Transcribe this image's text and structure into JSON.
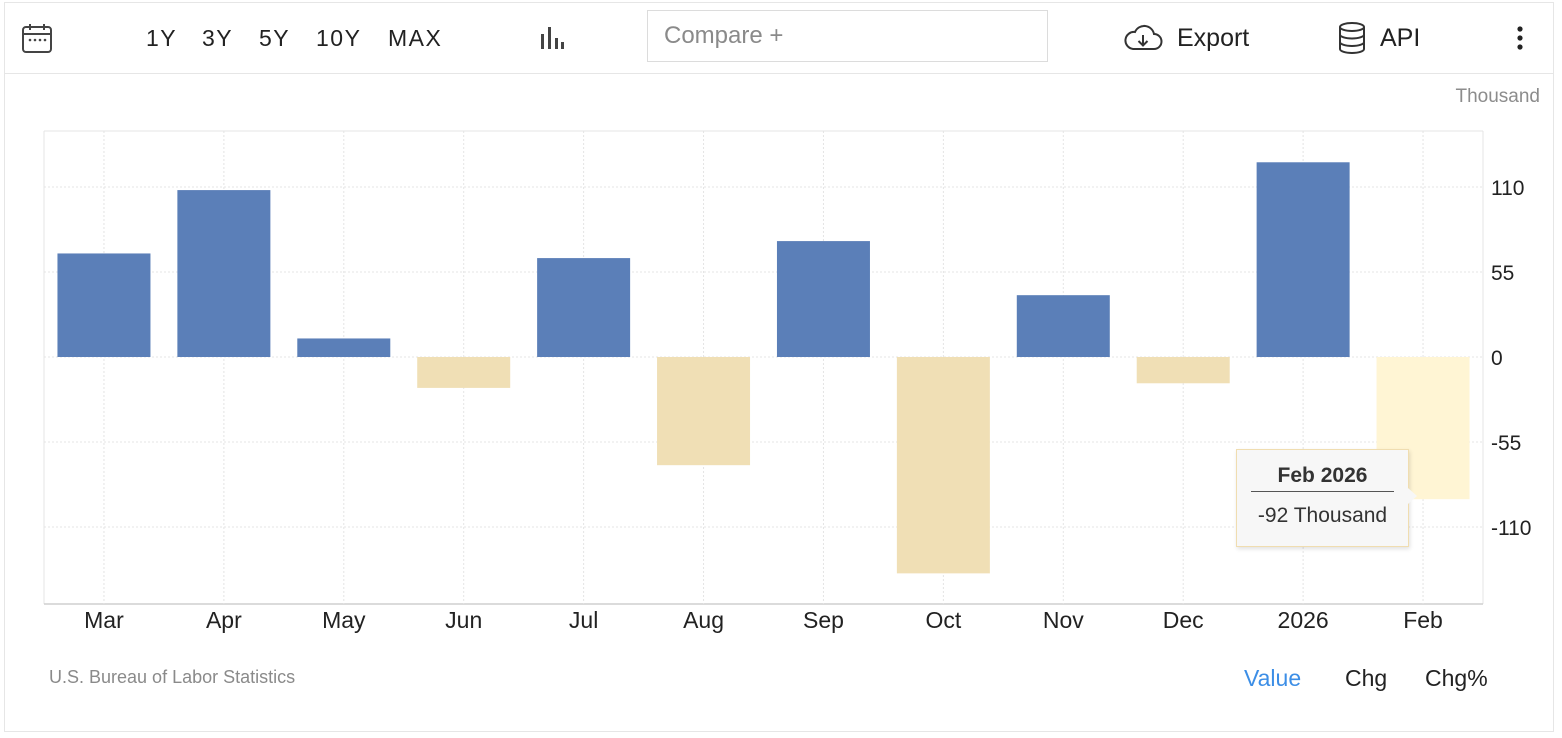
{
  "toolbar": {
    "calendar_icon": "calendar-icon",
    "periods": [
      "1Y",
      "3Y",
      "5Y",
      "10Y",
      "MAX"
    ],
    "chart_type_icon": "bar-chart-icon",
    "compare_placeholder": "Compare +",
    "export_label": "Export",
    "export_icon": "cloud-download-icon",
    "api_label": "API",
    "api_icon": "database-icon",
    "more_icon": "vertical-dots-icon"
  },
  "unit_label": "Thousand",
  "source": "U.S. Bureau of Labor Statistics",
  "modes": [
    "Value",
    "Chg",
    "Chg%"
  ],
  "active_mode": "Value",
  "tooltip": {
    "title": "Feb 2026",
    "value": "-92 Thousand"
  },
  "colors": {
    "positive": "#5b7fb8",
    "negative": "#f0dfb5",
    "highlight": "#fff5d4",
    "grid": "#e4e4e4",
    "active_mode": "#3c8ee6"
  },
  "chart_data": {
    "type": "bar",
    "title": "",
    "xlabel": "",
    "ylabel": "Thousand",
    "categories": [
      "Mar",
      "Apr",
      "May",
      "Jun",
      "Jul",
      "Aug",
      "Sep",
      "Oct",
      "Nov",
      "Dec",
      "2026",
      "Feb"
    ],
    "values": [
      67,
      108,
      12,
      -20,
      64,
      -70,
      75,
      -140,
      40,
      -17,
      126,
      -92
    ],
    "yticks": [
      110,
      55,
      0,
      -55,
      -110
    ],
    "ylim": [
      -160,
      146
    ],
    "grid": true,
    "highlighted_index": 11
  }
}
